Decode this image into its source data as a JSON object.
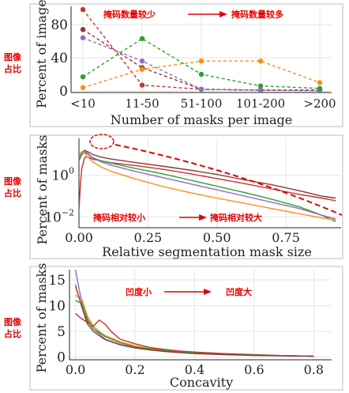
{
  "colors": {
    "red": "#c7332b",
    "brown": "#8b3a3a",
    "purple": "#8e6cc4",
    "green": "#2ca02c",
    "orange": "#ff8c1a",
    "annotation": "#e60000",
    "grid": "#e6e6e6"
  },
  "side_labels": [
    {
      "line1": "图像",
      "line2": "占比"
    },
    {
      "line1": "图像",
      "line2": "占比"
    },
    {
      "line1": "图像",
      "line2": "占比"
    }
  ],
  "annotations": {
    "panel1_left": "掩码数量较少",
    "panel1_right": "掩码数量较多",
    "panel2_left": "掩码相对较小",
    "panel2_right": "掩码相对较大",
    "panel3_left": "凹度小",
    "panel3_right": "凹度大"
  },
  "chart_data": [
    {
      "type": "line",
      "xlabel": "Number of masks per image",
      "ylabel": "Percent of images",
      "categories": [
        "<10",
        "11-50",
        "51-100",
        "101-200",
        ">200"
      ],
      "ylim": [
        0,
        100
      ],
      "yticks": [
        0,
        40,
        80
      ],
      "grid": true,
      "series": [
        {
          "color": "red",
          "values": [
            98,
            7,
            2,
            1,
            1
          ]
        },
        {
          "color": "brown",
          "values": [
            74,
            28,
            2,
            1,
            1
          ]
        },
        {
          "color": "purple",
          "values": [
            64,
            36,
            2,
            1,
            0
          ]
        },
        {
          "color": "green",
          "values": [
            17,
            63,
            20,
            6,
            3
          ]
        },
        {
          "color": "orange",
          "values": [
            4,
            26,
            36,
            36,
            10
          ]
        }
      ]
    },
    {
      "type": "line",
      "xlabel": "Relative segmentation mask size",
      "ylabel": "Percent of masks",
      "y_scale": "log",
      "xlim": [
        0,
        0.95
      ],
      "ylim": [
        0.003,
        60
      ],
      "xticks": [
        "0.00",
        "0.25",
        "0.50",
        "0.75"
      ],
      "yticks": [
        "10^0",
        "10^-2"
      ],
      "grid": true,
      "series": [
        {
          "color": "brown",
          "x": [
            0.0,
            0.01,
            0.02,
            0.03,
            0.05,
            0.08,
            0.12,
            0.2,
            0.3,
            0.4,
            0.5,
            0.6,
            0.7,
            0.8,
            0.88,
            0.93
          ],
          "y": [
            6,
            12,
            16,
            14,
            10,
            7.5,
            6,
            4.2,
            2.8,
            1.8,
            1.1,
            0.6,
            0.35,
            0.18,
            0.1,
            0.08
          ]
        },
        {
          "color": "red",
          "x": [
            0.0,
            0.005,
            0.01,
            0.02,
            0.03,
            0.05,
            0.08,
            0.12,
            0.2,
            0.3,
            0.4,
            0.5,
            0.6,
            0.7,
            0.8,
            0.88,
            0.93
          ],
          "y": [
            0.02,
            0.3,
            2,
            7,
            8,
            6,
            5,
            4,
            3,
            2,
            1.2,
            0.7,
            0.4,
            0.22,
            0.12,
            0.08,
            0.06
          ]
        },
        {
          "color": "green",
          "x": [
            0.0,
            0.01,
            0.02,
            0.03,
            0.05,
            0.08,
            0.12,
            0.2,
            0.3,
            0.4,
            0.5,
            0.6,
            0.7,
            0.8,
            0.88,
            0.93
          ],
          "y": [
            5,
            10,
            13,
            11,
            7,
            5,
            3.8,
            2.2,
            1.2,
            0.6,
            0.3,
            0.15,
            0.07,
            0.03,
            0.012,
            0.006
          ]
        },
        {
          "color": "purple",
          "x": [
            0.0,
            0.01,
            0.02,
            0.03,
            0.05,
            0.08,
            0.12,
            0.2,
            0.3,
            0.4,
            0.5,
            0.6,
            0.7,
            0.8,
            0.88,
            0.93
          ],
          "y": [
            7,
            13,
            15,
            12,
            7,
            4.5,
            3,
            1.6,
            0.8,
            0.4,
            0.2,
            0.1,
            0.05,
            0.025,
            0.012,
            0.008
          ]
        },
        {
          "color": "orange",
          "x": [
            0.0,
            0.01,
            0.02,
            0.03,
            0.05,
            0.08,
            0.12,
            0.2,
            0.3,
            0.4,
            0.5,
            0.6,
            0.7,
            0.8,
            0.88,
            0.93
          ],
          "y": [
            9,
            14,
            12,
            8,
            4.5,
            2.5,
            1.5,
            0.7,
            0.3,
            0.15,
            0.08,
            0.045,
            0.025,
            0.014,
            0.009,
            0.007
          ]
        }
      ]
    },
    {
      "type": "line",
      "xlabel": "Concavity",
      "ylabel": "Percent of masks",
      "xlim": [
        -0.02,
        0.86
      ],
      "ylim": [
        -0.5,
        17
      ],
      "xticks": [
        "0.0",
        "0.2",
        "0.4",
        "0.6",
        "0.8"
      ],
      "yticks": [
        0,
        5,
        10,
        15
      ],
      "grid": true,
      "series": [
        {
          "color": "purple",
          "x": [
            0.0,
            0.02,
            0.04,
            0.06,
            0.08,
            0.1,
            0.15,
            0.2,
            0.25,
            0.3,
            0.35,
            0.4,
            0.5,
            0.6,
            0.7,
            0.8
          ],
          "y": [
            17,
            11,
            7,
            5.5,
            4.5,
            3.5,
            2.5,
            1.9,
            1.5,
            1.2,
            1.0,
            0.8,
            0.6,
            0.4,
            0.3,
            0.2
          ]
        },
        {
          "color": "orange",
          "x": [
            0.0,
            0.02,
            0.04,
            0.06,
            0.08,
            0.1,
            0.15,
            0.2,
            0.25,
            0.3,
            0.35,
            0.4,
            0.5,
            0.6,
            0.7,
            0.8
          ],
          "y": [
            12,
            11.5,
            8,
            6,
            5,
            4.2,
            3,
            2.2,
            1.7,
            1.4,
            1.1,
            0.9,
            0.6,
            0.4,
            0.3,
            0.2
          ]
        },
        {
          "color": "red",
          "x": [
            0.0,
            0.02,
            0.04,
            0.06,
            0.08,
            0.1,
            0.12,
            0.15,
            0.2,
            0.25,
            0.3,
            0.35,
            0.4,
            0.5,
            0.6,
            0.7,
            0.8
          ],
          "y": [
            8.5,
            7.5,
            6.8,
            6,
            7.2,
            6.4,
            5,
            3.5,
            2.6,
            1.9,
            1.5,
            1.2,
            1.0,
            0.7,
            0.5,
            0.3,
            0.2
          ]
        },
        {
          "color": "green",
          "x": [
            0.0,
            0.02,
            0.04,
            0.06,
            0.08,
            0.1,
            0.15,
            0.2,
            0.25,
            0.3,
            0.35,
            0.4,
            0.5,
            0.6,
            0.7,
            0.8
          ],
          "y": [
            11,
            10.5,
            7.5,
            5.5,
            4.8,
            4,
            2.8,
            2,
            1.6,
            1.3,
            1.0,
            0.8,
            0.55,
            0.4,
            0.3,
            0.2
          ]
        },
        {
          "color": "brown",
          "x": [
            0.0,
            0.02,
            0.04,
            0.06,
            0.08,
            0.1,
            0.15,
            0.2,
            0.25,
            0.3,
            0.35,
            0.4,
            0.5,
            0.6,
            0.7,
            0.8
          ],
          "y": [
            14,
            10,
            6.5,
            5,
            4.2,
            3.4,
            2.4,
            1.8,
            1.4,
            1.1,
            0.9,
            0.7,
            0.5,
            0.35,
            0.25,
            0.2
          ]
        }
      ]
    }
  ]
}
